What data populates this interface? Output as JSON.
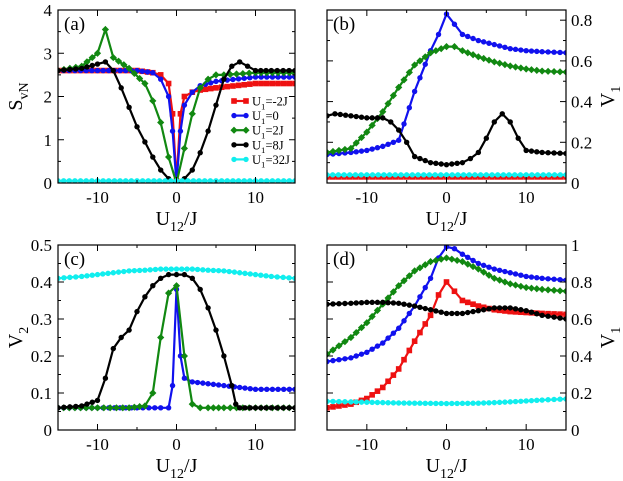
{
  "colors": {
    "red": "#ee1111",
    "blue": "#1111ee",
    "green": "#118811",
    "black": "#000000",
    "cyan": "#11eeee"
  },
  "chart_data": [
    {
      "type": "line",
      "panel_label": "(a)",
      "xlabel": "U_12/J",
      "ylabel": "S_vN",
      "xlim": [
        -15,
        15
      ],
      "ylim": [
        0,
        4
      ],
      "xticks": [
        -10,
        0,
        10
      ],
      "yticks": [
        0,
        1,
        2,
        3,
        4
      ],
      "xtick_labels": [
        "-10",
        "0",
        "10"
      ],
      "ytick_labels": [
        "0",
        "1",
        "2",
        "3",
        "4"
      ],
      "legend_title": "",
      "legend": [
        {
          "label": "U_1=-2J",
          "color": "red"
        },
        {
          "label": "U_1=0",
          "color": "blue"
        },
        {
          "label": "U_1=2J",
          "color": "green"
        },
        {
          "label": "U_1=8J",
          "color": "black"
        },
        {
          "label": "U_1=32J",
          "color": "cyan"
        }
      ],
      "series": [
        {
          "name": "U_1=-2J",
          "color": "red",
          "marker": "square",
          "x": [
            -15,
            -10,
            -5,
            -3,
            -2,
            -1,
            -0.5,
            0,
            0.5,
            1,
            2,
            3,
            5,
            10,
            15
          ],
          "y": [
            2.6,
            2.6,
            2.6,
            2.55,
            2.5,
            2.3,
            1.6,
            0.05,
            1.6,
            2.0,
            2.1,
            2.15,
            2.2,
            2.3,
            2.3
          ]
        },
        {
          "name": "U_1=0",
          "color": "blue",
          "marker": "circle",
          "x": [
            -15,
            -10,
            -5,
            -3,
            -2,
            -1,
            -0.5,
            0,
            0.5,
            1,
            2,
            3,
            5,
            10,
            15
          ],
          "y": [
            2.6,
            2.6,
            2.6,
            2.55,
            2.4,
            2.0,
            1.2,
            0.0,
            1.2,
            1.8,
            2.1,
            2.25,
            2.35,
            2.45,
            2.45
          ]
        },
        {
          "name": "U_1=2J",
          "color": "green",
          "marker": "diamond",
          "x": [
            -15,
            -12,
            -10,
            -9,
            -8,
            -6,
            -4,
            -3,
            -2,
            -1,
            0,
            1,
            2,
            3,
            4,
            5,
            6,
            10,
            15
          ],
          "y": [
            2.6,
            2.7,
            3.0,
            3.55,
            2.9,
            2.65,
            2.3,
            1.9,
            1.4,
            0.6,
            0.0,
            0.8,
            1.6,
            2.2,
            2.4,
            2.5,
            2.5,
            2.55,
            2.55
          ]
        },
        {
          "name": "U_1=8J",
          "color": "black",
          "marker": "circle",
          "x": [
            -15,
            -12,
            -10,
            -9,
            -8,
            -7,
            -6,
            -5,
            -4,
            -3,
            -2,
            -1,
            0,
            1,
            2,
            3,
            4,
            5,
            6,
            7,
            8,
            9,
            10,
            12,
            15
          ],
          "y": [
            2.6,
            2.65,
            2.75,
            2.8,
            2.6,
            2.2,
            1.75,
            1.3,
            0.95,
            0.6,
            0.3,
            0.1,
            0.0,
            0.1,
            0.3,
            0.7,
            1.2,
            1.8,
            2.4,
            2.7,
            2.8,
            2.7,
            2.6,
            2.6,
            2.6
          ]
        },
        {
          "name": "U_1=32J",
          "color": "cyan",
          "marker": "circle",
          "x": [
            -15,
            -10,
            -5,
            0,
            5,
            10,
            15
          ],
          "y": [
            0.05,
            0.05,
            0.05,
            0.05,
            0.05,
            0.05,
            0.05
          ]
        }
      ]
    },
    {
      "type": "line",
      "panel_label": "(b)",
      "xlabel": "U_12/J",
      "ylabel": "V_1",
      "xlim": [
        -15,
        15
      ],
      "ylim": [
        0,
        0.85
      ],
      "xticks": [
        -10,
        0,
        10
      ],
      "yticks": [
        0,
        0.2,
        0.4,
        0.6,
        0.8
      ],
      "xtick_labels": [
        "-10",
        "0",
        "10"
      ],
      "ytick_labels": [
        "0",
        "0.2",
        "0.4",
        "0.6",
        "0.8"
      ],
      "series": [
        {
          "name": "U_1=-2J",
          "color": "red",
          "marker": "square",
          "x": [
            -15,
            -10,
            -5,
            0,
            5,
            10,
            15
          ],
          "y": [
            0.03,
            0.03,
            0.03,
            0.03,
            0.03,
            0.03,
            0.03
          ]
        },
        {
          "name": "U_1=0",
          "color": "blue",
          "marker": "circle",
          "x": [
            -15,
            -12,
            -10,
            -8,
            -6,
            -4,
            -2,
            -1,
            0,
            1,
            2,
            4,
            6,
            8,
            10,
            12,
            15
          ],
          "y": [
            0.14,
            0.15,
            0.16,
            0.18,
            0.21,
            0.45,
            0.65,
            0.73,
            0.83,
            0.78,
            0.73,
            0.7,
            0.68,
            0.66,
            0.65,
            0.645,
            0.64
          ]
        },
        {
          "name": "U_1=2J",
          "color": "green",
          "marker": "diamond",
          "x": [
            -15,
            -12,
            -10,
            -8,
            -6,
            -4,
            -2,
            0,
            1,
            2,
            4,
            6,
            8,
            10,
            12,
            15
          ],
          "y": [
            0.15,
            0.17,
            0.25,
            0.35,
            0.47,
            0.58,
            0.64,
            0.67,
            0.67,
            0.65,
            0.62,
            0.595,
            0.575,
            0.56,
            0.55,
            0.545
          ]
        },
        {
          "name": "U_1=8J",
          "color": "black",
          "marker": "circle",
          "x": [
            -15,
            -14,
            -12,
            -10,
            -8,
            -7,
            -6,
            -5,
            -4,
            -2,
            0,
            2,
            3,
            4,
            5,
            6,
            7,
            8,
            9,
            10,
            12,
            15
          ],
          "y": [
            0.33,
            0.34,
            0.33,
            0.32,
            0.32,
            0.3,
            0.26,
            0.2,
            0.13,
            0.1,
            0.09,
            0.1,
            0.12,
            0.15,
            0.22,
            0.3,
            0.34,
            0.3,
            0.22,
            0.16,
            0.15,
            0.145
          ]
        },
        {
          "name": "U_1=32J",
          "color": "cyan",
          "marker": "circle",
          "x": [
            -15,
            -10,
            -5,
            0,
            5,
            10,
            15
          ],
          "y": [
            0.04,
            0.04,
            0.04,
            0.04,
            0.04,
            0.04,
            0.04
          ]
        }
      ]
    },
    {
      "type": "line",
      "panel_label": "(c)",
      "xlabel": "U_12/J",
      "ylabel": "V_2",
      "xlim": [
        -15,
        15
      ],
      "ylim": [
        0,
        0.5
      ],
      "xticks": [
        -10,
        0,
        10
      ],
      "yticks": [
        0,
        0.1,
        0.2,
        0.3,
        0.4,
        0.5
      ],
      "xtick_labels": [
        "-10",
        "0",
        "10"
      ],
      "ytick_labels": [
        "0",
        "0.1",
        "0.2",
        "0.3",
        "0.4",
        "0.5"
      ],
      "series": [
        {
          "name": "U_1=0",
          "color": "blue",
          "marker": "circle",
          "x": [
            -15,
            -10,
            -5,
            -2,
            -1,
            -0.5,
            0,
            0.5,
            1,
            2,
            4,
            6,
            8,
            10,
            15
          ],
          "y": [
            0.06,
            0.06,
            0.06,
            0.06,
            0.06,
            0.12,
            0.38,
            0.2,
            0.14,
            0.13,
            0.125,
            0.12,
            0.115,
            0.11,
            0.11
          ]
        },
        {
          "name": "U_1=2J",
          "color": "green",
          "marker": "diamond",
          "x": [
            -15,
            -10,
            -6,
            -4,
            -3,
            -2,
            -1,
            0,
            1,
            2,
            3,
            4,
            6,
            10,
            15
          ],
          "y": [
            0.06,
            0.06,
            0.06,
            0.065,
            0.1,
            0.25,
            0.37,
            0.39,
            0.2,
            0.07,
            0.06,
            0.06,
            0.06,
            0.06,
            0.06
          ]
        },
        {
          "name": "U_1=8J",
          "color": "black",
          "marker": "circle",
          "x": [
            -15,
            -12,
            -10,
            -9,
            -8,
            -7,
            -6,
            -5,
            -4,
            -3,
            -2,
            -1,
            0,
            1,
            2,
            3,
            4,
            5,
            6,
            7,
            7.5,
            8,
            10,
            12,
            15
          ],
          "y": [
            0.06,
            0.065,
            0.08,
            0.14,
            0.22,
            0.25,
            0.27,
            0.32,
            0.36,
            0.39,
            0.41,
            0.42,
            0.42,
            0.42,
            0.41,
            0.38,
            0.33,
            0.27,
            0.2,
            0.12,
            0.07,
            0.06,
            0.06,
            0.06,
            0.06
          ]
        },
        {
          "name": "U_1=32J",
          "color": "cyan",
          "marker": "circle",
          "x": [
            -15,
            -12,
            -10,
            -8,
            -6,
            -4,
            -2,
            0,
            2,
            4,
            6,
            8,
            10,
            12,
            15
          ],
          "y": [
            0.41,
            0.415,
            0.42,
            0.425,
            0.43,
            0.432,
            0.435,
            0.435,
            0.435,
            0.432,
            0.43,
            0.425,
            0.42,
            0.415,
            0.41
          ]
        }
      ]
    },
    {
      "type": "line",
      "panel_label": "(d)",
      "xlabel": "U_12/J",
      "ylabel": "V_1",
      "xlim": [
        -15,
        15
      ],
      "ylim": [
        0,
        1
      ],
      "xticks": [
        -10,
        0,
        10
      ],
      "yticks": [
        0,
        0.2,
        0.4,
        0.6,
        0.8,
        1
      ],
      "xtick_labels": [
        "-10",
        "0",
        "10"
      ],
      "ytick_labels": [
        "0",
        "0.2",
        "0.4",
        "0.6",
        "0.8",
        "1"
      ],
      "series": [
        {
          "name": "U_1=-2J",
          "color": "red",
          "marker": "square",
          "x": [
            -15,
            -12,
            -10,
            -8,
            -6,
            -4,
            -2,
            -1,
            0,
            1,
            2,
            4,
            6,
            8,
            10,
            12,
            15
          ],
          "y": [
            0.12,
            0.14,
            0.17,
            0.23,
            0.33,
            0.48,
            0.62,
            0.73,
            0.8,
            0.75,
            0.7,
            0.67,
            0.65,
            0.64,
            0.635,
            0.63,
            0.625
          ]
        },
        {
          "name": "U_1=0",
          "color": "blue",
          "marker": "circle",
          "x": [
            -15,
            -12,
            -10,
            -8,
            -6,
            -4,
            -2,
            -1,
            0,
            1,
            2,
            4,
            6,
            8,
            10,
            12,
            15
          ],
          "y": [
            0.37,
            0.39,
            0.42,
            0.47,
            0.55,
            0.67,
            0.82,
            0.93,
            0.99,
            0.98,
            0.95,
            0.9,
            0.87,
            0.85,
            0.83,
            0.82,
            0.81
          ]
        },
        {
          "name": "U_1=2J",
          "color": "green",
          "marker": "diamond",
          "x": [
            -15,
            -12,
            -10,
            -8,
            -6,
            -4,
            -2,
            0,
            2,
            4,
            6,
            8,
            10,
            12,
            15
          ],
          "y": [
            0.41,
            0.5,
            0.58,
            0.68,
            0.78,
            0.86,
            0.91,
            0.93,
            0.91,
            0.87,
            0.82,
            0.79,
            0.77,
            0.76,
            0.75
          ]
        },
        {
          "name": "U_1=8J",
          "color": "black",
          "marker": "circle",
          "x": [
            -15,
            -12,
            -10,
            -8,
            -6,
            -4,
            -2,
            0,
            2,
            4,
            6,
            8,
            10,
            12,
            15
          ],
          "y": [
            0.68,
            0.685,
            0.69,
            0.69,
            0.685,
            0.67,
            0.65,
            0.63,
            0.63,
            0.645,
            0.66,
            0.66,
            0.645,
            0.62,
            0.6
          ]
        },
        {
          "name": "U_1=32J",
          "color": "cyan",
          "marker": "circle",
          "x": [
            -15,
            -12,
            -10,
            -8,
            -6,
            -4,
            -2,
            0,
            2,
            4,
            6,
            8,
            10,
            12,
            15
          ],
          "y": [
            0.155,
            0.152,
            0.15,
            0.148,
            0.146,
            0.145,
            0.144,
            0.143,
            0.144,
            0.145,
            0.148,
            0.152,
            0.157,
            0.162,
            0.168
          ]
        }
      ]
    }
  ]
}
